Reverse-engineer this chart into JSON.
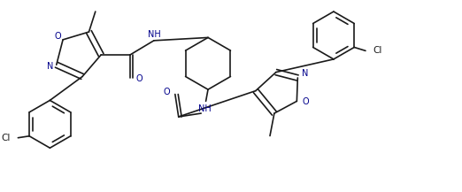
{
  "background_color": "#ffffff",
  "line_color": "#1a1a1a",
  "blue_text_color": "#00008b",
  "figsize": [
    5.22,
    2.17
  ],
  "dpi": 100,
  "bond_width": 1.2,
  "font_size": 7.0,
  "xlim": [
    0.0,
    10.5
  ],
  "ylim": [
    0.0,
    4.2
  ]
}
